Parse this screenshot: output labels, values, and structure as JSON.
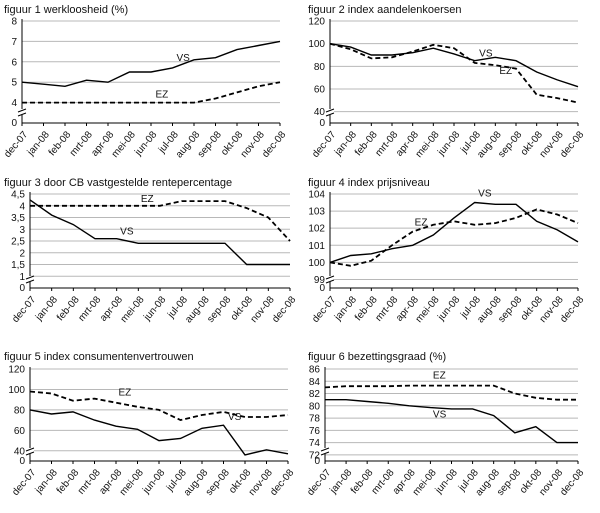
{
  "chart_data": [
    {
      "type": "line",
      "title": "figuur 1 werkloosheid (%)",
      "categories": [
        "dec-07",
        "jan-08",
        "feb-08",
        "mrt-08",
        "apr-08",
        "mei-08",
        "jun-08",
        "jul-08",
        "aug-08",
        "sep-08",
        "okt-08",
        "nov-08",
        "dec-08"
      ],
      "yticks": [
        0,
        4,
        5,
        6,
        7,
        8
      ],
      "ylim": [
        3,
        8
      ],
      "axis_break": true,
      "grid": true,
      "series": [
        {
          "name": "VS",
          "style": "solid",
          "values": [
            5.0,
            4.9,
            4.8,
            5.1,
            5.0,
            5.5,
            5.5,
            5.7,
            6.1,
            6.2,
            6.6,
            6.8,
            7.0
          ]
        },
        {
          "name": "EZ",
          "style": "dashed",
          "values": [
            4.0,
            4.0,
            4.0,
            4.0,
            4.0,
            4.0,
            4.0,
            4.0,
            4.0,
            4.2,
            4.5,
            4.8,
            5.0
          ]
        }
      ]
    },
    {
      "type": "line",
      "title": "figuur 2 index aandelenkoersen",
      "categories": [
        "dec-07",
        "jan-08",
        "feb-08",
        "mrt-08",
        "apr-08",
        "mei-08",
        "jun-08",
        "jul-08",
        "aug-08",
        "sep-08",
        "okt-08",
        "nov-08",
        "dec-08"
      ],
      "yticks": [
        0,
        40,
        60,
        80,
        100,
        120
      ],
      "ylim": [
        30,
        120
      ],
      "axis_break": true,
      "grid": true,
      "series": [
        {
          "name": "VS",
          "style": "solid",
          "values": [
            100,
            97,
            90,
            90,
            92,
            96,
            91,
            85,
            88,
            85,
            75,
            68,
            62
          ]
        },
        {
          "name": "EZ",
          "style": "dashed",
          "values": [
            100,
            95,
            87,
            88,
            93,
            99,
            96,
            83,
            81,
            78,
            55,
            52,
            48
          ]
        }
      ]
    },
    {
      "type": "line",
      "title": "figuur 3 door CB vastgestelde rentepercentage",
      "categories": [
        "dec-07",
        "jan-08",
        "feb-08",
        "mrt-08",
        "apr-08",
        "mei-08",
        "jun-08",
        "jul-08",
        "aug-08",
        "sep-08",
        "okt-08",
        "nov-08",
        "dec-08"
      ],
      "yticks": [
        0,
        1,
        1.5,
        2,
        2.5,
        3,
        3.5,
        4,
        4.5
      ],
      "ylim": [
        0.5,
        4.5
      ],
      "axis_break": true,
      "grid": true,
      "series": [
        {
          "name": "VS",
          "style": "solid",
          "values": [
            4.25,
            3.6,
            3.2,
            2.6,
            2.6,
            2.4,
            2.4,
            2.4,
            2.4,
            2.4,
            1.5,
            1.5,
            1.5
          ]
        },
        {
          "name": "EZ",
          "style": "dashed",
          "values": [
            4.0,
            4.0,
            4.0,
            4.0,
            4.0,
            4.0,
            4.0,
            4.2,
            4.2,
            4.2,
            3.9,
            3.5,
            2.5
          ]
        }
      ]
    },
    {
      "type": "line",
      "title": "figuur 4 index prijsniveau",
      "categories": [
        "dec-07",
        "jan-08",
        "feb-08",
        "mrt-08",
        "apr-08",
        "mei-08",
        "jun-08",
        "jul-08",
        "aug-08",
        "sep-08",
        "okt-08",
        "nov-08",
        "dec-08"
      ],
      "yticks": [
        0,
        99,
        100,
        101,
        102,
        103,
        104
      ],
      "ylim": [
        98.5,
        104
      ],
      "axis_break": true,
      "grid": true,
      "series": [
        {
          "name": "VS",
          "style": "solid",
          "values": [
            100.0,
            100.4,
            100.5,
            100.8,
            101.0,
            101.6,
            102.6,
            103.5,
            103.4,
            103.4,
            102.4,
            101.9,
            101.2
          ]
        },
        {
          "name": "EZ",
          "style": "dashed",
          "values": [
            100.0,
            99.8,
            100.1,
            101.0,
            101.8,
            102.2,
            102.4,
            102.2,
            102.3,
            102.6,
            103.1,
            102.8,
            102.3
          ]
        }
      ]
    },
    {
      "type": "line",
      "title": "figuur 5 index consumentenvertrouwen",
      "categories": [
        "dec-07",
        "jan-08",
        "feb-08",
        "mrt-08",
        "apr-08",
        "mei-08",
        "jun-08",
        "jul-08",
        "aug-08",
        "sep-08",
        "okt-08",
        "nov-08",
        "dec-08"
      ],
      "yticks": [
        0,
        40,
        60,
        80,
        100,
        120
      ],
      "ylim": [
        30,
        120
      ],
      "axis_break": true,
      "grid": true,
      "series": [
        {
          "name": "VS",
          "style": "solid",
          "values": [
            80,
            76,
            78,
            70,
            64,
            61,
            50,
            52,
            62,
            65,
            36,
            41,
            37
          ]
        },
        {
          "name": "EZ",
          "style": "dashed",
          "values": [
            98,
            96,
            89,
            91,
            87,
            83,
            80,
            70,
            75,
            78,
            73,
            73,
            75
          ]
        }
      ]
    },
    {
      "type": "line",
      "title": "figuur 6 bezettingsgraad (%)",
      "categories": [
        "dec-07",
        "jan-08",
        "feb-08",
        "mrt-08",
        "apr-08",
        "mei-08",
        "jun-08",
        "jul-08",
        "aug-08",
        "sep-08",
        "okt-08",
        "nov-08",
        "dec-08"
      ],
      "yticks": [
        0,
        72,
        74,
        76,
        78,
        80,
        82,
        84,
        86
      ],
      "ylim": [
        71,
        86
      ],
      "axis_break": true,
      "grid": true,
      "series": [
        {
          "name": "VS",
          "style": "solid",
          "values": [
            81.0,
            81.0,
            80.7,
            80.4,
            80.0,
            79.7,
            79.5,
            79.5,
            78.4,
            75.6,
            76.6,
            74.0,
            74.0
          ]
        },
        {
          "name": "EZ",
          "style": "dashed",
          "values": [
            83.0,
            83.2,
            83.2,
            83.2,
            83.3,
            83.3,
            83.3,
            83.3,
            83.3,
            82.0,
            81.3,
            81.0,
            81.0
          ]
        }
      ]
    }
  ]
}
